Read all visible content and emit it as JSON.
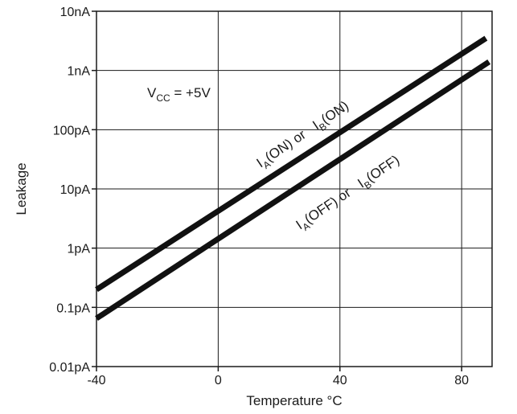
{
  "chart_data": {
    "type": "line",
    "y_scale": "log",
    "xlabel": "Temperature °C",
    "ylabel": "Leakage",
    "xlim": [
      -40,
      90
    ],
    "ylim_log10": [
      -14,
      -8
    ],
    "x_ticks": [
      {
        "value": -40,
        "label": "-40"
      },
      {
        "value": 0,
        "label": "0"
      },
      {
        "value": 40,
        "label": "40"
      },
      {
        "value": 80,
        "label": "80"
      }
    ],
    "y_ticks": [
      {
        "exp": -8,
        "label": "10nA"
      },
      {
        "exp": -9,
        "label": "1nA"
      },
      {
        "exp": -10,
        "label": "100pA"
      },
      {
        "exp": -11,
        "label": "10pA"
      },
      {
        "exp": -12,
        "label": "1pA"
      },
      {
        "exp": -13,
        "label": "0.1pA"
      },
      {
        "exp": -14,
        "label": "0.01pA"
      }
    ],
    "grid": true,
    "series": [
      {
        "name": "IA(ON) or IB(ON)",
        "color": "#111111",
        "points": [
          {
            "x": -40,
            "y": 2e-13
          },
          {
            "x": 88,
            "y": 3.5e-09
          }
        ]
      },
      {
        "name": "IA(OFF) or IB(OFF)",
        "color": "#111111",
        "points": [
          {
            "x": -40,
            "y": 6.5e-14
          },
          {
            "x": 89,
            "y": 1.4e-09
          }
        ]
      }
    ],
    "annotations": {
      "vcc": {
        "main": "V",
        "sub": "CC",
        "rest": " = +5V"
      },
      "on": {
        "i1": "I",
        "s1": "A",
        "t1": "(ON) or ",
        "i2": "I",
        "s2": "B",
        "t2": "(ON)"
      },
      "off": {
        "i1": "I",
        "s1": "A",
        "t1": "(OFF) or ",
        "i2": "I",
        "s2": "B",
        "t2": "(OFF)"
      }
    }
  }
}
